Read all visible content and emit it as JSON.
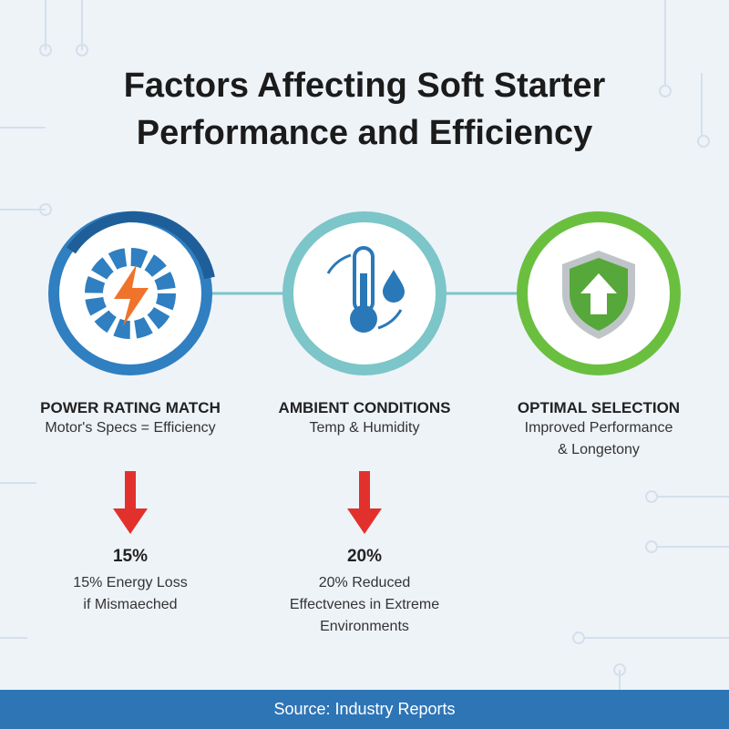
{
  "header": {
    "title": "Factors Affecting Soft Starter Performance and Efficiency"
  },
  "factors": [
    {
      "heading": "POWER RATING MATCH",
      "lines": [
        "Motor's Specs = Efficiency"
      ]
    },
    {
      "heading": "AMBIENT CONDITIONS",
      "lines": [
        "Temp & Humidity"
      ]
    },
    {
      "heading": "OPTIMAL SELECTION",
      "lines": [
        "Improved Performance",
        "& Longetony"
      ]
    }
  ],
  "impacts": [
    {
      "value": "15%",
      "lines": [
        "15% Energy Loss",
        "if Mismaeched"
      ]
    },
    {
      "value": "20%",
      "lines": [
        "20% Reduced",
        "Effectvenes in Extreme",
        "Environments"
      ]
    }
  ],
  "footer": {
    "source": "Source: Industry Reports"
  }
}
